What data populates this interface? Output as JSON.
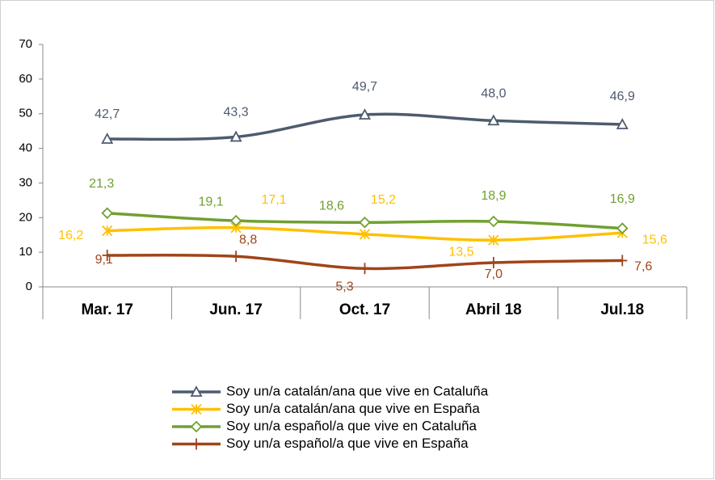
{
  "chart_data": {
    "type": "line",
    "categories": [
      "Mar. 17",
      "Jun. 17",
      "Oct. 17",
      "Abril 18",
      "Jul.18"
    ],
    "ylim": [
      0,
      70
    ],
    "yticks": [
      0,
      10,
      20,
      30,
      40,
      50,
      60,
      70
    ],
    "series": [
      {
        "name": "Soy un/a catalán/ana que vive en Cataluña",
        "color": "#4d5b6e",
        "marker": "triangle",
        "values": [
          42.7,
          43.3,
          49.7,
          48.0,
          46.9
        ],
        "value_labels": [
          "42,7",
          "43,3",
          "49,7",
          "48,0",
          "46,9"
        ]
      },
      {
        "name": "Soy un/a catalán/ana que vive en España",
        "color": "#ffc000",
        "marker": "asterisk",
        "values": [
          16.2,
          17.1,
          15.2,
          13.5,
          15.6
        ],
        "value_labels": [
          "16,2",
          "17,1",
          "15,2",
          "13,5",
          "15,6"
        ]
      },
      {
        "name": "Soy un/a español/a que vive en Cataluña",
        "color": "#70a030",
        "marker": "diamond",
        "values": [
          21.3,
          19.1,
          18.6,
          18.9,
          16.9
        ],
        "value_labels": [
          "21,3",
          "19,1",
          "18,6",
          "18,9",
          "16,9"
        ]
      },
      {
        "name": "Soy un/a español/a que vive en España",
        "color": "#a0441a",
        "marker": "plus",
        "values": [
          9.1,
          8.8,
          5.3,
          7.0,
          7.6
        ],
        "value_labels": [
          "9,1",
          "8,8",
          "5,3",
          "7,0",
          "7,6"
        ]
      }
    ]
  }
}
